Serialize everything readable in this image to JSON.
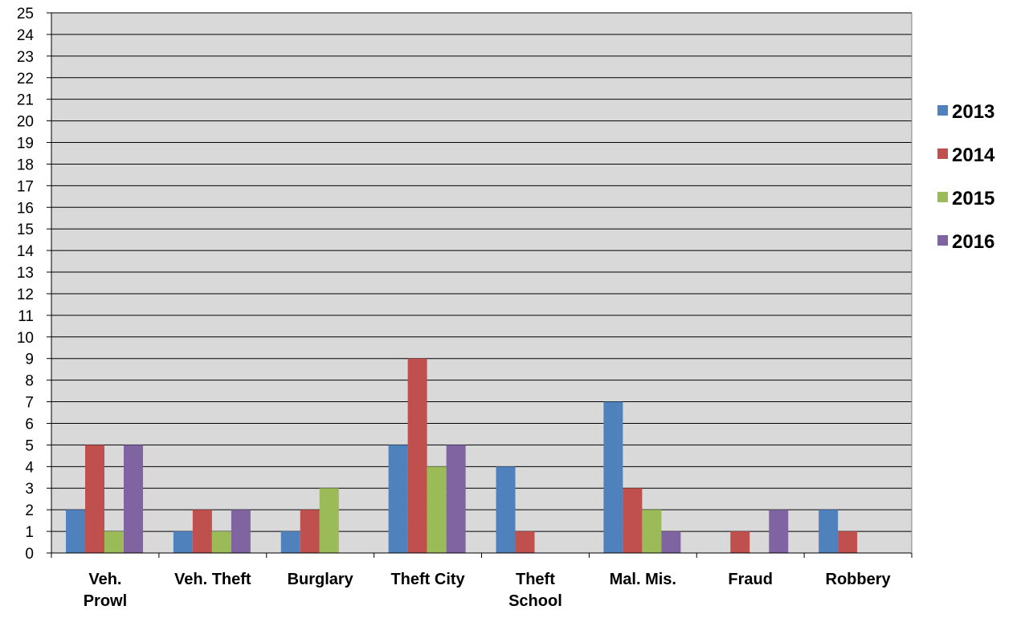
{
  "chart_data": {
    "type": "bar",
    "categories": [
      [
        "Veh.",
        "Prowl"
      ],
      [
        "Veh. Theft"
      ],
      [
        "Burglary"
      ],
      [
        "Theft City"
      ],
      [
        "Theft",
        "School"
      ],
      [
        "Mal. Mis."
      ],
      [
        "Fraud"
      ],
      [
        "Robbery"
      ]
    ],
    "series": [
      {
        "name": "2013",
        "color": "#4F81BD",
        "values": [
          2,
          1,
          1,
          5,
          4,
          7,
          0,
          2
        ]
      },
      {
        "name": "2014",
        "color": "#C0504D",
        "values": [
          5,
          2,
          2,
          9,
          1,
          3,
          1,
          1
        ]
      },
      {
        "name": "2015",
        "color": "#9BBB59",
        "values": [
          1,
          1,
          3,
          4,
          0,
          2,
          0,
          0
        ]
      },
      {
        "name": "2016",
        "color": "#8064A2",
        "values": [
          5,
          2,
          0,
          5,
          0,
          1,
          2,
          0
        ]
      }
    ],
    "ylim": [
      0,
      25
    ],
    "ytick_step": 1,
    "grid": true,
    "plot_background": "#D9D9D9",
    "legend_position": "right"
  }
}
